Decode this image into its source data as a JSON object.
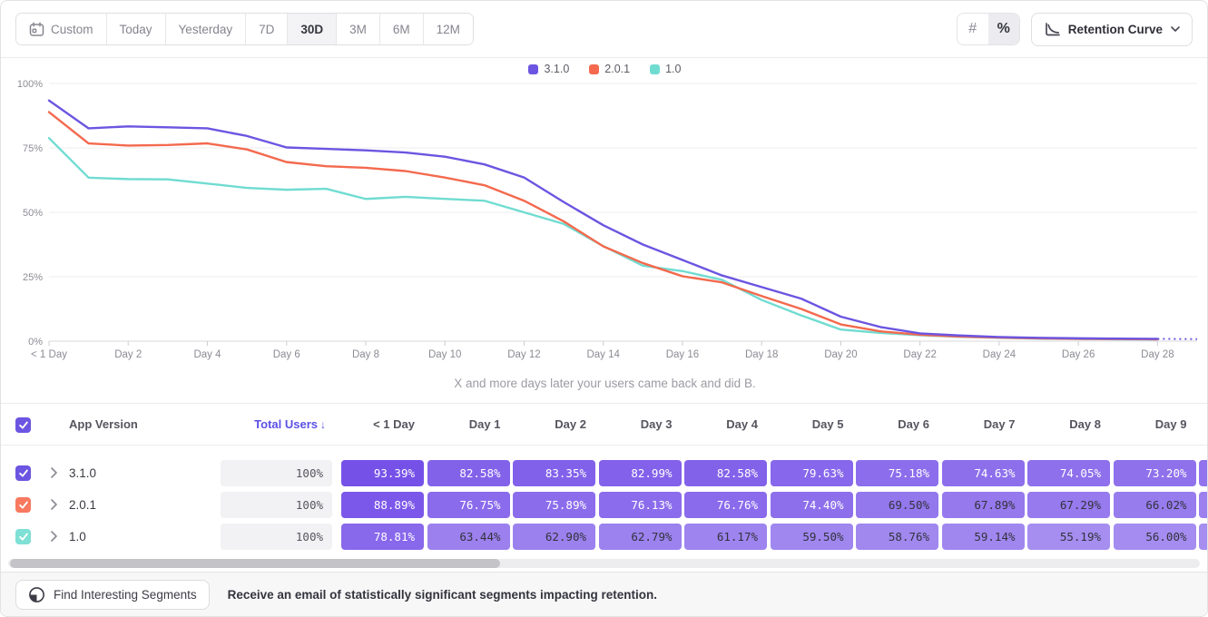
{
  "accent_color": "#6c55e1",
  "toolbar": {
    "date_ranges": [
      {
        "label": "Custom",
        "icon": "calendar-icon",
        "active": false
      },
      {
        "label": "Today",
        "active": false
      },
      {
        "label": "Yesterday",
        "active": false
      },
      {
        "label": "7D",
        "active": false
      },
      {
        "label": "30D",
        "active": true
      },
      {
        "label": "3M",
        "active": false
      },
      {
        "label": "6M",
        "active": false
      },
      {
        "label": "12M",
        "active": false
      }
    ],
    "value_mode_toggle": [
      {
        "label": "#",
        "name": "number-mode",
        "active": false
      },
      {
        "label": "%",
        "name": "percent-mode",
        "active": true
      }
    ],
    "chart_type_selector": {
      "label": "Retention Curve"
    }
  },
  "chart_data": {
    "type": "line",
    "caption": "X and more days later your users came back and did B.",
    "x_tick_labels": [
      "< 1 Day",
      "Day 2",
      "Day 4",
      "Day 6",
      "Day 8",
      "Day 10",
      "Day 12",
      "Day 14",
      "Day 16",
      "Day 18",
      "Day 20",
      "Day 22",
      "Day 24",
      "Day 26",
      "Day 28"
    ],
    "y_tick_labels": [
      "0%",
      "25%",
      "50%",
      "75%",
      "100%"
    ],
    "ylim": [
      0,
      100
    ],
    "x_range_days": [
      0,
      29
    ],
    "grid": true,
    "legend_position": "top-center",
    "dashed_incomplete_from_day": 28,
    "series": [
      {
        "name": "3.1.0",
        "color": "#6c55e1",
        "values": [
          93.39,
          82.58,
          83.35,
          82.99,
          82.58,
          79.63,
          75.18,
          74.63,
          74.05,
          73.2,
          71.6,
          68.6,
          63.5,
          54.0,
          45.0,
          37.5,
          31.5,
          25.5,
          21.0,
          16.5,
          9.5,
          5.5,
          3.0,
          2.2,
          1.6,
          1.3,
          1.1,
          1.0,
          0.9,
          0.8
        ]
      },
      {
        "name": "2.0.1",
        "color": "#f4694e",
        "values": [
          88.89,
          76.75,
          75.89,
          76.13,
          76.76,
          74.4,
          69.5,
          67.89,
          67.29,
          66.02,
          63.5,
          60.5,
          54.5,
          46.5,
          36.8,
          30.3,
          25.2,
          22.8,
          17.5,
          12.5,
          6.5,
          3.8,
          2.5,
          1.8,
          1.4,
          1.1,
          0.9,
          0.8,
          0.7,
          0.65
        ]
      },
      {
        "name": "1.0",
        "color": "#70dcd1",
        "values": [
          78.81,
          63.44,
          62.9,
          62.79,
          61.17,
          59.5,
          58.76,
          59.14,
          55.19,
          56.0,
          55.2,
          54.5,
          50.0,
          45.5,
          36.9,
          29.3,
          27.2,
          23.8,
          16.0,
          10.0,
          4.5,
          3.2,
          2.3,
          1.7,
          1.3,
          1.0,
          0.85,
          0.75,
          0.7,
          0.6
        ]
      }
    ]
  },
  "table": {
    "select_all_checked": true,
    "headers": {
      "app_version": "App Version",
      "total_users": "Total Users",
      "sort_arrow": "↓",
      "days": [
        "< 1 Day",
        "Day 1",
        "Day 2",
        "Day 3",
        "Day 4",
        "Day 5",
        "Day 6",
        "Day 7",
        "Day 8",
        "Day 9"
      ]
    },
    "rows": [
      {
        "label": "3.1.0",
        "checked": true,
        "checkbox_color": "#6c55e1",
        "total_users": "100%",
        "cells": [
          "93.39%",
          "82.58%",
          "83.35%",
          "82.99%",
          "82.58%",
          "79.63%",
          "75.18%",
          "74.63%",
          "74.05%",
          "73.20%"
        ]
      },
      {
        "label": "2.0.1",
        "checked": true,
        "checkbox_color": "#f8795f",
        "total_users": "100%",
        "cells": [
          "88.89%",
          "76.75%",
          "75.89%",
          "76.13%",
          "76.76%",
          "74.40%",
          "69.50%",
          "67.89%",
          "67.29%",
          "66.02%"
        ]
      },
      {
        "label": "1.0",
        "checked": true,
        "checkbox_color": "#7fe0d5",
        "total_users": "100%",
        "cells": [
          "78.81%",
          "63.44%",
          "62.90%",
          "62.79%",
          "61.17%",
          "59.50%",
          "58.76%",
          "59.14%",
          "55.19%",
          "56.00%"
        ]
      }
    ]
  },
  "footer": {
    "button_label": "Find Interesting Segments",
    "message": "Receive an email of statistically significant segments impacting retention."
  }
}
